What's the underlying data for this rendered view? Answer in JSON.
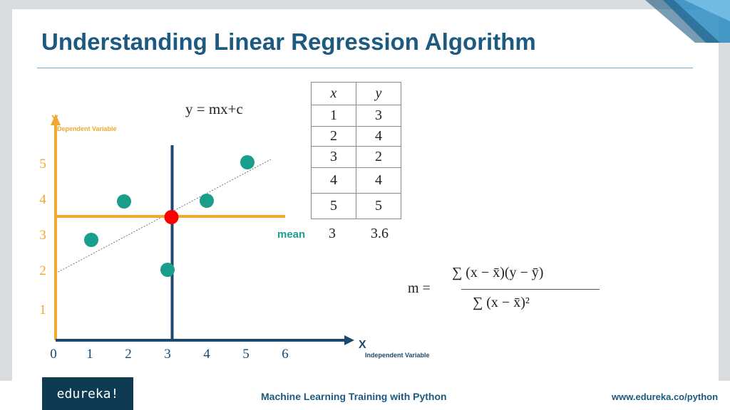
{
  "slide": {
    "title": "Understanding Linear Regression Algorithm",
    "equation": "y = mx+c",
    "m_label": "m =",
    "numerator": "∑ (x − x̄)(y − ȳ)",
    "denominator": "∑ (x − x̄)²",
    "mean_label": "mean",
    "mean_x": "3",
    "mean_y": "3.6"
  },
  "table": {
    "headers": [
      "x",
      "y"
    ],
    "rows": [
      [
        "1",
        "3"
      ],
      [
        "2",
        "4"
      ],
      [
        "3",
        "2"
      ],
      [
        "4",
        "4"
      ],
      [
        "5",
        "5"
      ]
    ]
  },
  "footer": {
    "logo": "edureka!",
    "center": "Machine Learning Training with Python",
    "right": "www.edureka.co/python"
  },
  "colors": {
    "title": "#1c5a80",
    "axis": "#f0a830",
    "points": "#1a9e8c",
    "mean_point": "#ff0000",
    "vertical_line": "#1c4a6e"
  },
  "chart_data": {
    "type": "scatter",
    "x_axis_label": "X",
    "x_axis_sublabel": "Independent Variable",
    "y_axis_label": "Y",
    "y_axis_sublabel": "Dependent Variable",
    "x_ticks": [
      "0",
      "1",
      "2",
      "3",
      "4",
      "5",
      "6"
    ],
    "y_ticks": [
      "1",
      "2",
      "3",
      "4",
      "5"
    ],
    "xlim": [
      0,
      6
    ],
    "ylim": [
      0.8,
      5.6
    ],
    "points": [
      {
        "x": 1,
        "y": 3
      },
      {
        "x": 2,
        "y": 4
      },
      {
        "x": 3,
        "y": 2
      },
      {
        "x": 4,
        "y": 4
      },
      {
        "x": 5,
        "y": 5
      }
    ],
    "mean_point": {
      "x": 3,
      "y": 3.6
    },
    "regression_line": {
      "from": {
        "x": 0,
        "y": 2.0
      },
      "to": {
        "x": 5.5,
        "y": 5.2
      }
    }
  }
}
